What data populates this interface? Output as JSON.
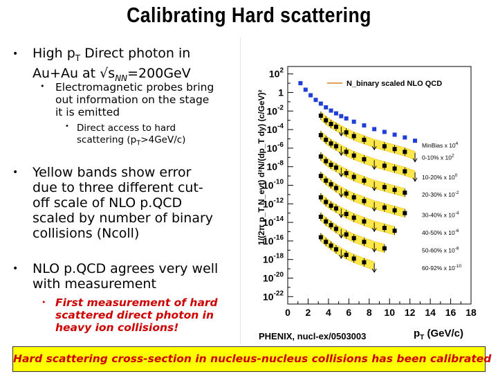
{
  "slide": {
    "title": "Calibrating Hard scattering",
    "bullets": {
      "b1_line1": "High p",
      "b1_sub": "T",
      "b1_line1_rest": " Direct photon in",
      "b1_line2": "Au+Au at √s",
      "b1_line2_sub": "NN",
      "b1_line2_rest": "=200GeV",
      "b1a_l1": "Electromagnetic probes bring",
      "b1a_l2": "out information on the stage",
      "b1a_l3": "it is emitted",
      "b1a_i_l1": "Direct access to hard",
      "b1a_i_l2": "scattering (p",
      "b1a_i_sub": "T",
      "b1a_i_l2_rest": ">4GeV/c)",
      "b2_l1": "Yellow bands show error",
      "b2_l2": "due to three different cut-",
      "b2_l3": "off scale of NLO p.QCD",
      "b2_l4": "scaled by number of binary",
      "b2_l5": "collisions (Ncoll)",
      "b3_l1": "NLO p.QCD agrees very well",
      "b3_l2": "with measurement",
      "b3a_l1": "First measurement of hard",
      "b3a_l2": "scattered direct photon in",
      "b3a_l3": "heavy ion collisions!"
    },
    "banner": "Hard scattering cross-section in nucleus-nucleus collisions has been calibrated"
  },
  "chart_data": {
    "type": "scatter",
    "y_scale": "log",
    "xlim": [
      0,
      18
    ],
    "ylim_exp": [
      -23,
      3
    ],
    "x_ticks": [
      "0",
      "2",
      "4",
      "6",
      "8",
      "10",
      "12",
      "14",
      "16",
      "18"
    ],
    "y_ticks": [
      "10^2",
      "1",
      "10^-2",
      "10^-4",
      "10^-6",
      "10^-8",
      "10^-10",
      "10^-12",
      "10^-14",
      "10^-16",
      "10^-18",
      "10^-20",
      "10^-22"
    ],
    "xlabel": "p_T (GeV/c)",
    "ylabel": "1/(2π p_T N_evt) d²N/(dp_T dy) (c/GeV)²",
    "legend": "N_binary scaled NLO QCD",
    "footer_label": "PHENIX, nucl-ex/0503003",
    "series": [
      {
        "name": "MinBias x 10^4",
        "marker": "square-blue",
        "x": [
          1.25,
          1.75,
          2.25,
          2.75,
          3.25,
          3.75,
          4.25,
          4.75,
          5.25,
          5.75,
          6.5,
          7.5,
          8.5,
          9.5,
          10.5,
          11.5,
          12.5
        ],
        "log10_y": [
          1.0,
          0.3,
          -0.3,
          -0.8,
          -1.2,
          -1.6,
          -1.95,
          -2.25,
          -2.55,
          -2.8,
          -3.15,
          -3.55,
          -3.95,
          -4.25,
          -4.55,
          -4.85,
          -5.2
        ]
      },
      {
        "name": "0-10% x 10^2",
        "x": [
          3.25,
          3.75,
          4.25,
          4.75,
          5.25,
          5.75,
          6.5,
          7.5,
          8.5,
          9.5,
          10.5,
          11.5,
          12.5
        ],
        "log10_y": [
          -2.5,
          -3.0,
          -3.4,
          -3.7,
          -4.0,
          -4.3,
          -4.7,
          -5.1,
          -5.5,
          -5.8,
          -6.1,
          -6.4,
          -6.8
        ]
      },
      {
        "name": "10-20% x 10^0",
        "x": [
          3.25,
          3.75,
          4.25,
          4.75,
          5.25,
          5.75,
          6.5,
          7.5,
          8.5,
          9.5,
          10.5,
          11.5,
          12.5
        ],
        "log10_y": [
          -4.6,
          -5.1,
          -5.5,
          -5.8,
          -6.1,
          -6.4,
          -6.8,
          -7.2,
          -7.6,
          -7.9,
          -8.2,
          -8.5,
          -8.9
        ]
      },
      {
        "name": "20-30% x 10^-2",
        "x": [
          3.25,
          3.75,
          4.25,
          4.75,
          5.25,
          5.75,
          6.5,
          7.5,
          8.5,
          9.5,
          10.5,
          11.5
        ],
        "log10_y": [
          -6.9,
          -7.4,
          -7.8,
          -8.1,
          -8.4,
          -8.7,
          -9.1,
          -9.5,
          -9.9,
          -10.2,
          -10.5,
          -10.8
        ]
      },
      {
        "name": "30-40% x 10^-4",
        "x": [
          3.25,
          3.75,
          4.25,
          4.75,
          5.25,
          5.75,
          6.5,
          7.5,
          8.5,
          9.5,
          10.5,
          11.5
        ],
        "log10_y": [
          -9.0,
          -9.5,
          -9.9,
          -10.3,
          -10.6,
          -10.9,
          -11.3,
          -11.7,
          -12.1,
          -12.4,
          -12.7,
          -13.0
        ]
      },
      {
        "name": "40-50% x 10^-6",
        "x": [
          3.25,
          3.75,
          4.25,
          4.75,
          5.25,
          5.75,
          6.5,
          7.5,
          8.5,
          9.5,
          10.5
        ],
        "log10_y": [
          -11.3,
          -11.8,
          -12.2,
          -12.5,
          -12.8,
          -13.1,
          -13.5,
          -13.9,
          -14.3,
          -14.6,
          -14.9
        ]
      },
      {
        "name": "50-60% x 10^-8",
        "x": [
          3.25,
          3.75,
          4.25,
          4.75,
          5.25,
          5.75,
          6.5,
          7.5,
          8.5,
          9.5
        ],
        "log10_y": [
          -13.4,
          -13.9,
          -14.3,
          -14.7,
          -15.0,
          -15.3,
          -15.7,
          -16.1,
          -16.5,
          -16.8
        ]
      },
      {
        "name": "60-92% x 10^-10",
        "x": [
          3.25,
          3.75,
          4.25,
          4.75,
          5.25,
          5.75,
          6.5,
          7.5,
          8.5
        ],
        "log10_y": [
          -15.6,
          -16.1,
          -16.5,
          -16.9,
          -17.2,
          -17.5,
          -17.9,
          -18.3,
          -18.7
        ]
      }
    ],
    "series_labels": [
      {
        "base": "MinBias x 10",
        "exp": "4"
      },
      {
        "base": "0-10%  x 10",
        "exp": "2"
      },
      {
        "base": "10-20%  x 10",
        "exp": "0"
      },
      {
        "base": "20-30%  x 10",
        "exp": "-2"
      },
      {
        "base": "30-40%  x 10",
        "exp": "-4"
      },
      {
        "base": "40-50%  x 10",
        "exp": "-6"
      },
      {
        "base": "50-60%  x 10",
        "exp": "-8"
      },
      {
        "base": "60-92%  x 10",
        "exp": "-10"
      }
    ]
  }
}
